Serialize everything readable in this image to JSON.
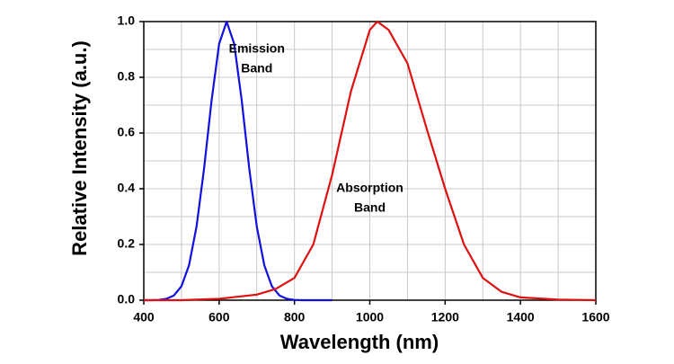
{
  "chart_data": {
    "type": "line",
    "xlabel": "Wavelength (nm)",
    "ylabel": "Relative Intensity (a.u.)",
    "xlim": [
      400,
      1600
    ],
    "xticks": [
      400,
      600,
      800,
      1000,
      1200,
      1400,
      1600
    ],
    "xminorticks": [
      500,
      700,
      900,
      1100,
      1300,
      1500
    ],
    "ylim": [
      0,
      1
    ],
    "yticks": [
      {
        "value": 0,
        "label": "0.0"
      },
      {
        "value": 0.2,
        "label": "0.2"
      },
      {
        "value": 0.4,
        "label": "0.4"
      },
      {
        "value": 0.6,
        "label": "0.6"
      },
      {
        "value": 0.8,
        "label": "0.8"
      },
      {
        "value": 1,
        "label": "1.0"
      }
    ],
    "yminorticks": [
      0.1,
      0.3,
      0.5,
      0.7,
      0.9
    ],
    "grid": true,
    "annotations": [
      {
        "lines": [
          "Emission",
          "Band"
        ],
        "x": 700,
        "y": 0.9
      },
      {
        "lines": [
          "Absorption",
          "Band"
        ],
        "x": 1000,
        "y": 0.4
      }
    ],
    "series": [
      {
        "color": "#1010e0",
        "x": [
          400,
          420,
          440,
          460,
          480,
          500,
          520,
          540,
          560,
          580,
          600,
          620,
          640,
          660,
          680,
          700,
          720,
          740,
          760,
          780,
          800,
          820,
          840,
          860,
          880,
          900
        ],
        "values": [
          0,
          0,
          0.001,
          0.005,
          0.017,
          0.05,
          0.125,
          0.264,
          0.472,
          0.717,
          0.92,
          1.0,
          0.92,
          0.717,
          0.472,
          0.264,
          0.125,
          0.05,
          0.017,
          0.005,
          0.001,
          0,
          0,
          0,
          0,
          0
        ]
      },
      {
        "color": "#e01010",
        "x": [
          400,
          500,
          600,
          700,
          750,
          800,
          850,
          900,
          950,
          1000,
          1020,
          1050,
          1100,
          1150,
          1200,
          1250,
          1300,
          1350,
          1400,
          1500,
          1600
        ],
        "values": [
          0,
          0,
          0.005,
          0.02,
          0.04,
          0.08,
          0.2,
          0.45,
          0.75,
          0.97,
          1.0,
          0.97,
          0.85,
          0.62,
          0.4,
          0.2,
          0.08,
          0.03,
          0.01,
          0.002,
          0
        ]
      }
    ]
  }
}
